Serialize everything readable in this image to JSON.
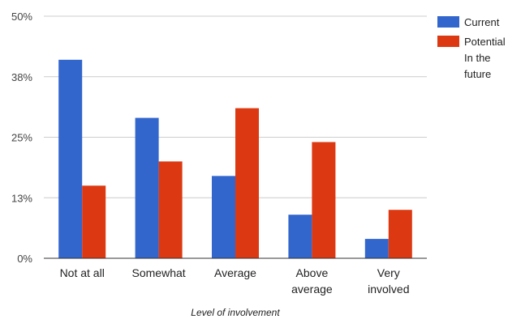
{
  "chart_data": {
    "type": "bar",
    "title": "",
    "xlabel": "Level of involvement",
    "ylabel": "",
    "ylim": [
      0,
      50
    ],
    "y_ticks": [
      {
        "value": 0,
        "label": "0%"
      },
      {
        "value": 12.5,
        "label": "13%"
      },
      {
        "value": 25,
        "label": "25%"
      },
      {
        "value": 37.5,
        "label": "38%"
      },
      {
        "value": 50,
        "label": "50%"
      }
    ],
    "categories": [
      [
        "Not at all"
      ],
      [
        "Somewhat"
      ],
      [
        "Average"
      ],
      [
        "Above",
        "average"
      ],
      [
        "Very",
        "involved"
      ]
    ],
    "series": [
      {
        "name": "Current",
        "color": "#3366cc",
        "values": [
          41,
          29,
          17,
          9,
          4
        ]
      },
      {
        "name": [
          "Potential",
          "In the",
          "future"
        ],
        "color": "#dc3912",
        "values": [
          15,
          20,
          31,
          24,
          10
        ]
      }
    ],
    "grid": true,
    "legend_position": "right"
  }
}
